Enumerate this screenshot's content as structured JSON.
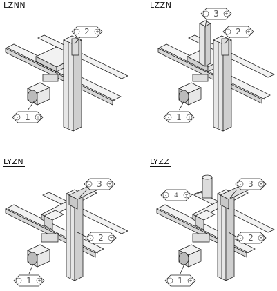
{
  "panels": [
    {
      "title": "LZNN",
      "callouts": [
        {
          "label": "2"
        },
        {
          "label": "1"
        }
      ]
    },
    {
      "title": "LZZN",
      "callouts": [
        {
          "label": "3"
        },
        {
          "label": "2"
        },
        {
          "label": "1"
        }
      ]
    },
    {
      "title": "LYZN",
      "callouts": [
        {
          "label": "3"
        },
        {
          "label": "2"
        },
        {
          "label": "1"
        }
      ]
    },
    {
      "title": "LYZZ",
      "callouts": [
        {
          "label": "4"
        },
        {
          "label": "3"
        },
        {
          "label": "2"
        },
        {
          "label": "1"
        }
      ]
    }
  ],
  "callout_signs": {
    "minus": "-",
    "plus": "+"
  },
  "colors": {
    "line": "#222222",
    "fill": "#f2f2f2",
    "shade": "#cfcfcf"
  }
}
